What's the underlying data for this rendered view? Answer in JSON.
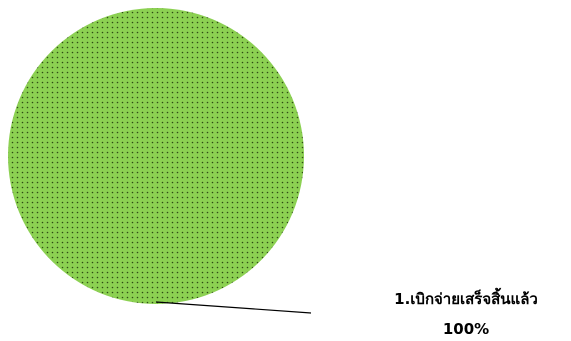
{
  "chart_data": {
    "type": "pie",
    "slices": [
      {
        "label": "1.เบิกจ่ายเสร็จสิ้นแล้ว",
        "value": 100,
        "value_label": "100%",
        "color": "#8cd152",
        "pattern": "dotted"
      }
    ],
    "legend": "none"
  }
}
